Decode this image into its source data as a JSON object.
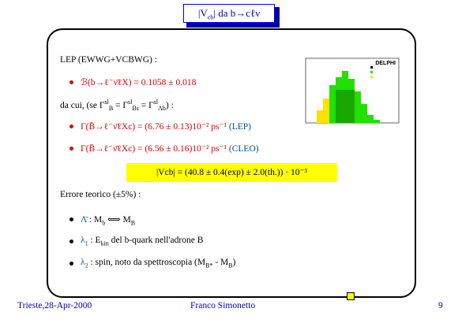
{
  "header": {
    "title": [
      "|V",
      "cb",
      "| da b→cℓν"
    ]
  },
  "body": {
    "intro": "LEP (EWWG+VCBWG) :",
    "branching": "ℬ(b→ℓ⁻ν̄ℓX) = 0.1058 ± 0.018",
    "relation": [
      "da cui, (se Γ",
      "sl",
      "B",
      " = Γ",
      "sl",
      "Bs",
      " = Γ",
      "sl",
      "Λb",
      ") :"
    ],
    "gamma_lep": [
      "Γ(B̄→ℓ⁻ν̄ℓXc) = (6.76 ± 0.13)10⁻² ps⁻¹",
      "(LEP)"
    ],
    "gamma_cleo": [
      "Γ(B̄→ℓ⁻ν̄ℓXc) = (6.56 ± 0.16)10⁻² ps⁻¹",
      "(CLEO)"
    ],
    "result": "|Vcb| = (40.8 ± 0.4(exp) ± 2.0(th.)) · 10⁻³",
    "error_intro": "Errore teorico (±5%) :",
    "items": [
      [
        "Λ̄",
        " :  M",
        "b",
        " ⟺ M",
        "B"
      ],
      [
        "λ",
        "1",
        " :  E",
        "kin",
        " del b-quark nell'adrone B"
      ],
      [
        "λ",
        "2",
        " :  spin, noto da spettroscopia (M",
        "B*",
        " - M",
        "B",
        ")"
      ]
    ],
    "inset": {
      "label": "DELPHI"
    }
  },
  "footer": {
    "place_date": "Trieste,28-Apr-2000",
    "author": "Franco Simonetto",
    "page": "9"
  }
}
